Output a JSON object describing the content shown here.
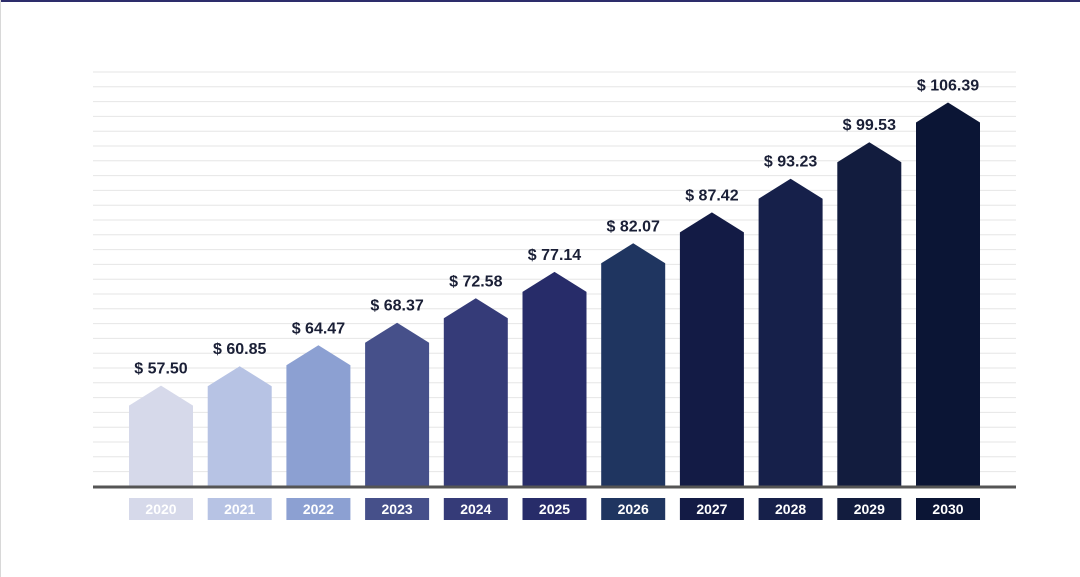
{
  "chart_data": {
    "type": "bar",
    "categories": [
      "2020",
      "2021",
      "2022",
      "2023",
      "2024",
      "2025",
      "2026",
      "2027",
      "2028",
      "2029",
      "2030"
    ],
    "values": [
      57.5,
      60.85,
      64.47,
      68.37,
      72.58,
      77.14,
      82.07,
      87.42,
      93.23,
      99.53,
      106.39
    ],
    "value_labels": [
      "$ 57.50",
      "$ 60.85",
      "$ 64.47",
      "$ 68.37",
      "$ 72.58",
      "$ 77.14",
      "$ 82.07",
      "$ 87.42",
      "$ 93.23",
      "$ 99.53",
      "$ 106.39"
    ],
    "title": "",
    "xlabel": "",
    "ylabel": "",
    "ylim": [
      40,
      112
    ],
    "grid": true,
    "legend": "none",
    "bar_shape": "house-arrow",
    "colors": [
      "#d6d9ea",
      "#b7c3e4",
      "#8ca0d2",
      "#46508a",
      "#353b78",
      "#272c69",
      "#1f3560",
      "#131b45",
      "#16204a",
      "#121c3e",
      "#0b1535"
    ],
    "axis_color": "#555555",
    "grid_color": "#e6e6e6"
  }
}
